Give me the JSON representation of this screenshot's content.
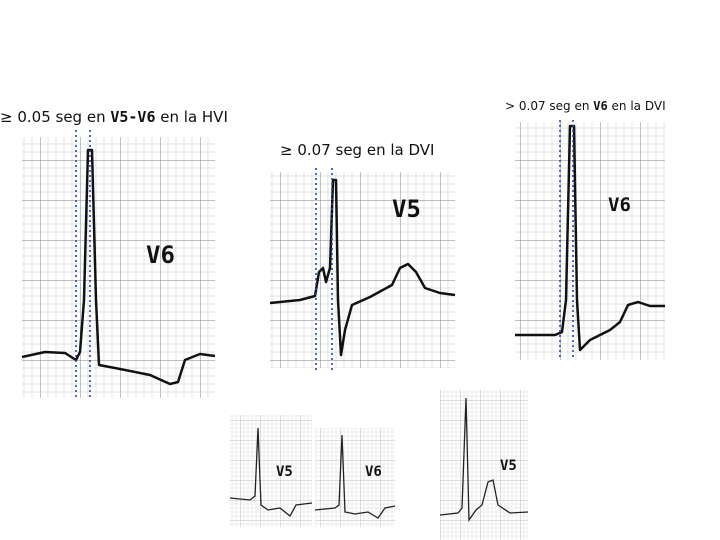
{
  "panels": [
    {
      "caption": {
        "pre": "≥ 0.05 seg en ",
        "bold": "V5-V6",
        "post": " en la HVI"
      },
      "lead": "V6"
    },
    {
      "caption": {
        "pre": "≥ 0.07 seg en la DVI"
      },
      "lead": "V5"
    },
    {
      "caption": {
        "pre": "> 0.07 seg en ",
        "bold": "V6",
        "post": " en la DVI"
      },
      "lead": "V6"
    }
  ],
  "small_strips": [
    {
      "lead": "V5"
    },
    {
      "lead": "V6"
    },
    {
      "lead": "V5"
    }
  ]
}
